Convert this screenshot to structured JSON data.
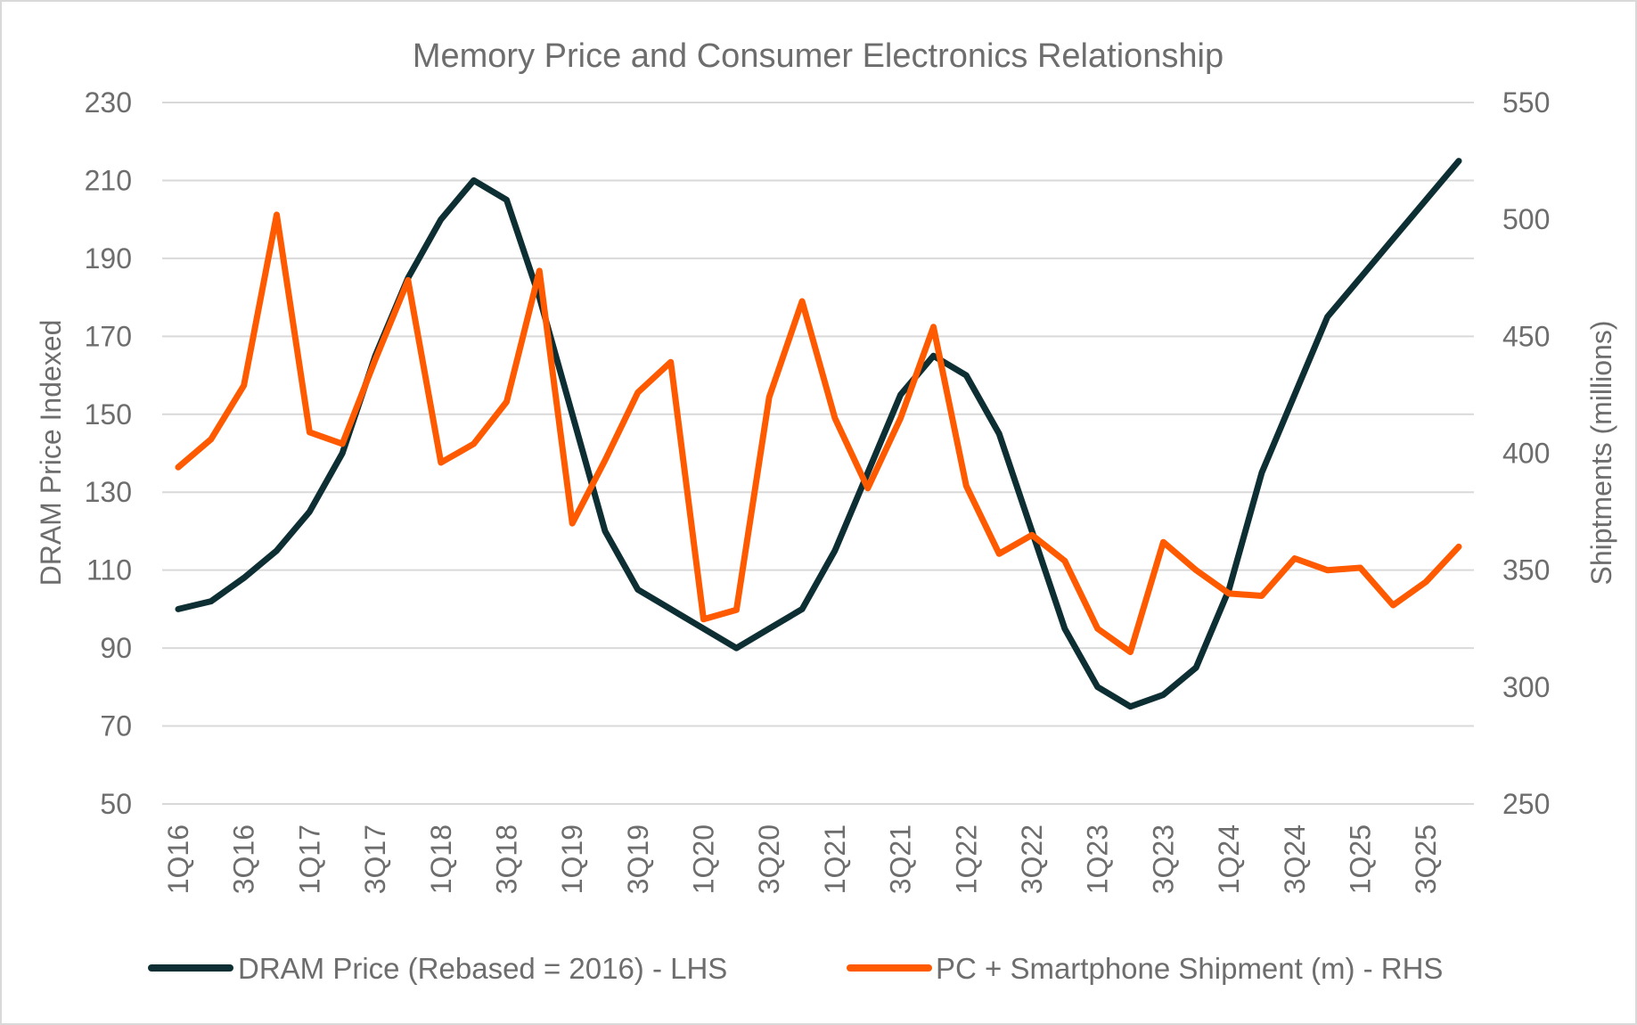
{
  "chart_data": {
    "type": "line",
    "title": "Memory Price and Consumer Electronics Relationship",
    "ylabel": "DRAM Price Indexed",
    "y2label": "Shiptments (millions)",
    "ylim": [
      50,
      230
    ],
    "y2lim": [
      250,
      550
    ],
    "yticks": [
      50,
      70,
      90,
      110,
      130,
      150,
      170,
      190,
      210,
      230
    ],
    "y2ticks": [
      250,
      300,
      350,
      400,
      450,
      500,
      550
    ],
    "grid": true,
    "legend_position": "bottom",
    "categories": [
      "1Q16",
      "2Q16",
      "3Q16",
      "4Q16",
      "1Q17",
      "2Q17",
      "3Q17",
      "4Q17",
      "1Q18",
      "2Q18",
      "3Q18",
      "4Q18",
      "1Q19",
      "2Q19",
      "3Q19",
      "4Q19",
      "1Q20",
      "2Q20",
      "3Q20",
      "4Q20",
      "1Q21",
      "2Q21",
      "3Q21",
      "4Q21",
      "1Q22",
      "2Q22",
      "3Q22",
      "4Q22",
      "1Q23",
      "2Q23",
      "3Q23",
      "4Q23",
      "1Q24",
      "2Q24",
      "3Q24",
      "4Q24",
      "1Q25",
      "2Q25",
      "3Q25",
      "4Q25"
    ],
    "xtick_labels": [
      "1Q16",
      "3Q16",
      "1Q17",
      "3Q17",
      "1Q18",
      "3Q18",
      "1Q19",
      "3Q19",
      "1Q20",
      "3Q20",
      "1Q21",
      "3Q21",
      "1Q22",
      "3Q22",
      "1Q23",
      "3Q23",
      "1Q24",
      "3Q24",
      "1Q25",
      "3Q25"
    ],
    "series": [
      {
        "name": "DRAM Price (Rebased = 2016) - LHS",
        "axis": "left",
        "color": "#0d2f33",
        "values": [
          100,
          102,
          108,
          115,
          125,
          140,
          165,
          185,
          200,
          210,
          205,
          180,
          150,
          120,
          105,
          100,
          95,
          90,
          95,
          100,
          115,
          135,
          155,
          165,
          160,
          145,
          120,
          95,
          80,
          75,
          78,
          85,
          105,
          135,
          155,
          175,
          185,
          195,
          205,
          215
        ]
      },
      {
        "name": "PC + Smartphone Shipment (m) - RHS",
        "axis": "right",
        "color": "#ff5a00",
        "values": [
          394,
          406,
          429,
          502,
          409,
          404,
          440,
          474,
          396,
          404,
          422,
          478,
          370,
          397,
          426,
          439,
          329,
          333,
          424,
          465,
          415,
          385,
          415,
          454,
          386,
          357,
          365,
          354,
          325,
          315,
          362,
          350,
          340,
          339,
          355,
          350,
          351,
          335,
          345,
          360
        ]
      }
    ]
  }
}
